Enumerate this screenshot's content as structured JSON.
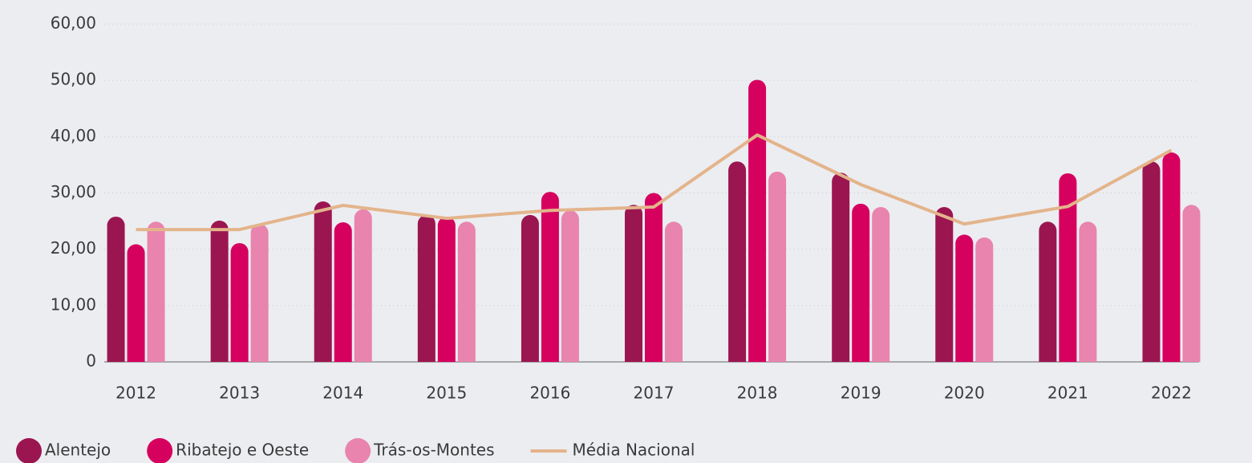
{
  "chart_data": {
    "type": "bar",
    "categories": [
      "2012",
      "2013",
      "2014",
      "2015",
      "2016",
      "2017",
      "2018",
      "2019",
      "2020",
      "2021",
      "2022"
    ],
    "series": [
      {
        "name": "Alentejo",
        "type": "bar",
        "color": "#9b1650",
        "values": [
          25.8,
          25.1,
          28.5,
          26.1,
          26.1,
          27.9,
          35.6,
          33.6,
          27.5,
          24.9,
          35.6
        ]
      },
      {
        "name": "Ribatejo e Oeste",
        "type": "bar",
        "color": "#d6005f",
        "values": [
          20.9,
          21.1,
          24.8,
          25.8,
          30.2,
          30.0,
          50.1,
          28.1,
          22.6,
          33.5,
          37.2
        ]
      },
      {
        "name": "Trás-os-Montes",
        "type": "bar",
        "color": "#e884ae",
        "values": [
          24.9,
          24.5,
          27.1,
          24.9,
          26.9,
          24.9,
          33.8,
          27.5,
          22.1,
          24.9,
          27.9
        ]
      },
      {
        "name": "Média Nacional",
        "type": "line",
        "color": "#e3b48b",
        "values": [
          23.5,
          23.5,
          27.8,
          25.5,
          26.9,
          27.5,
          40.3,
          31.5,
          24.5,
          27.6,
          37.6
        ]
      }
    ],
    "ylim": [
      0,
      60
    ],
    "yticks": [
      0,
      {
        "value": 10,
        "label": "10,00"
      },
      {
        "value": 20,
        "label": "20,00"
      },
      {
        "value": 30,
        "label": "30,00"
      },
      {
        "value": 40,
        "label": "40,00"
      },
      {
        "value": 50,
        "label": "50,00"
      },
      {
        "value": 60,
        "label": "60,00"
      }
    ],
    "grid": true,
    "legend": "bottom-left"
  }
}
